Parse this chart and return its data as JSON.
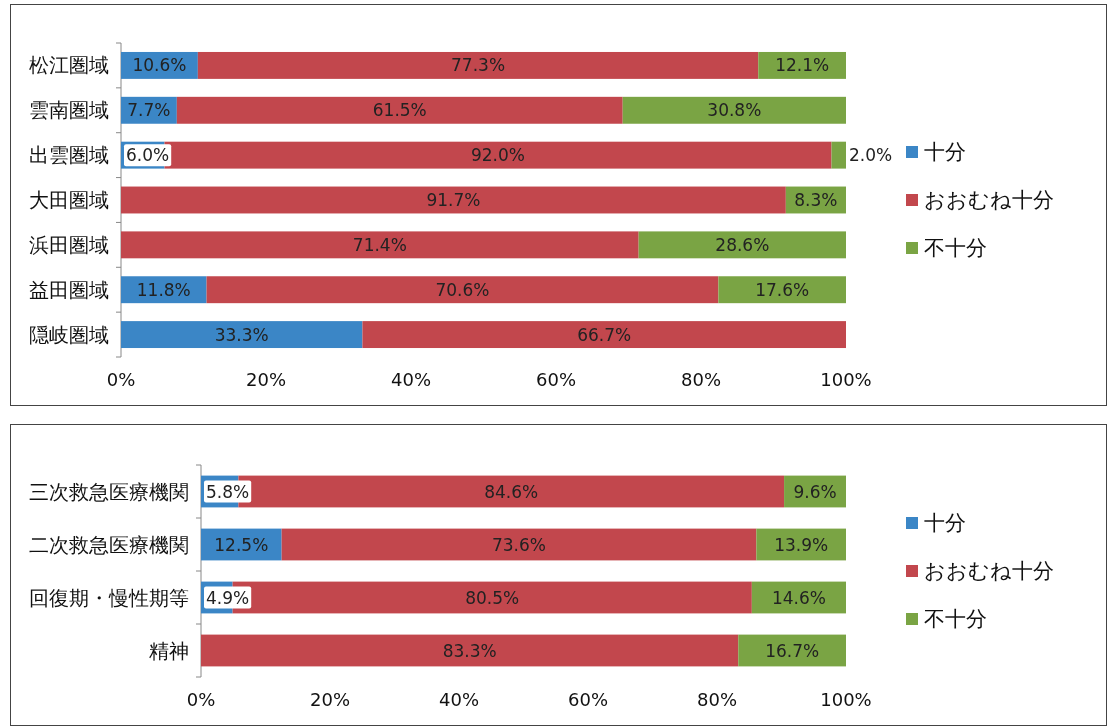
{
  "chart_data": [
    {
      "type": "bar",
      "orientation": "horizontal",
      "stacked": true,
      "categories": [
        "松江圏域",
        "雲南圏域",
        "出雲圏域",
        "大田圏域",
        "浜田圏域",
        "益田圏域",
        "隠岐圏域"
      ],
      "series": [
        {
          "name": "十分",
          "color": "#3b86c6",
          "values": [
            10.6,
            7.7,
            6.0,
            0,
            0,
            11.8,
            33.3
          ],
          "value_labels": [
            "10.6%",
            "7.7%",
            "6.0%",
            null,
            null,
            "11.8%",
            "33.3%"
          ]
        },
        {
          "name": "おおむね十分",
          "color": "#c2474d",
          "values": [
            77.3,
            61.5,
            92.0,
            91.7,
            71.4,
            70.6,
            66.7
          ],
          "value_labels": [
            "77.3%",
            "61.5%",
            "92.0%",
            "91.7%",
            "71.4%",
            "70.6%",
            "66.7%"
          ]
        },
        {
          "name": "不十分",
          "color": "#7aa444",
          "values": [
            12.1,
            30.8,
            2.0,
            8.3,
            28.6,
            17.6,
            0
          ],
          "value_labels": [
            "12.1%",
            "30.8%",
            "2.0%",
            "8.3%",
            "28.6%",
            "17.6%",
            null
          ]
        }
      ],
      "xlim": [
        0,
        100
      ],
      "xticks": [
        {
          "value": 0,
          "label": "0%"
        },
        {
          "value": 20,
          "label": "20%"
        },
        {
          "value": 40,
          "label": "40%"
        },
        {
          "value": 60,
          "label": "60%"
        },
        {
          "value": 80,
          "label": "80%"
        },
        {
          "value": 100,
          "label": "100%"
        }
      ],
      "legend": "right",
      "grid": false
    },
    {
      "type": "bar",
      "orientation": "horizontal",
      "stacked": true,
      "categories": [
        "三次救急医療機関",
        "二次救急医療機関",
        "回復期・慢性期等",
        "精神"
      ],
      "series": [
        {
          "name": "十分",
          "color": "#3b86c6",
          "values": [
            5.8,
            12.5,
            4.9,
            0
          ],
          "value_labels": [
            "5.8%",
            "12.5%",
            "4.9%",
            null
          ]
        },
        {
          "name": "おおむね十分",
          "color": "#c2474d",
          "values": [
            84.6,
            73.6,
            80.5,
            83.3
          ],
          "value_labels": [
            "84.6%",
            "73.6%",
            "80.5%",
            "83.3%"
          ]
        },
        {
          "name": "不十分",
          "color": "#7aa444",
          "values": [
            9.6,
            13.9,
            14.6,
            16.7
          ],
          "value_labels": [
            "9.6%",
            "13.9%",
            "14.6%",
            "16.7%"
          ]
        }
      ],
      "xlim": [
        0,
        100
      ],
      "xticks": [
        {
          "value": 0,
          "label": "0%"
        },
        {
          "value": 20,
          "label": "20%"
        },
        {
          "value": 40,
          "label": "40%"
        },
        {
          "value": 60,
          "label": "60%"
        },
        {
          "value": 80,
          "label": "80%"
        },
        {
          "value": 100,
          "label": "100%"
        }
      ],
      "legend": "right",
      "grid": false
    }
  ]
}
